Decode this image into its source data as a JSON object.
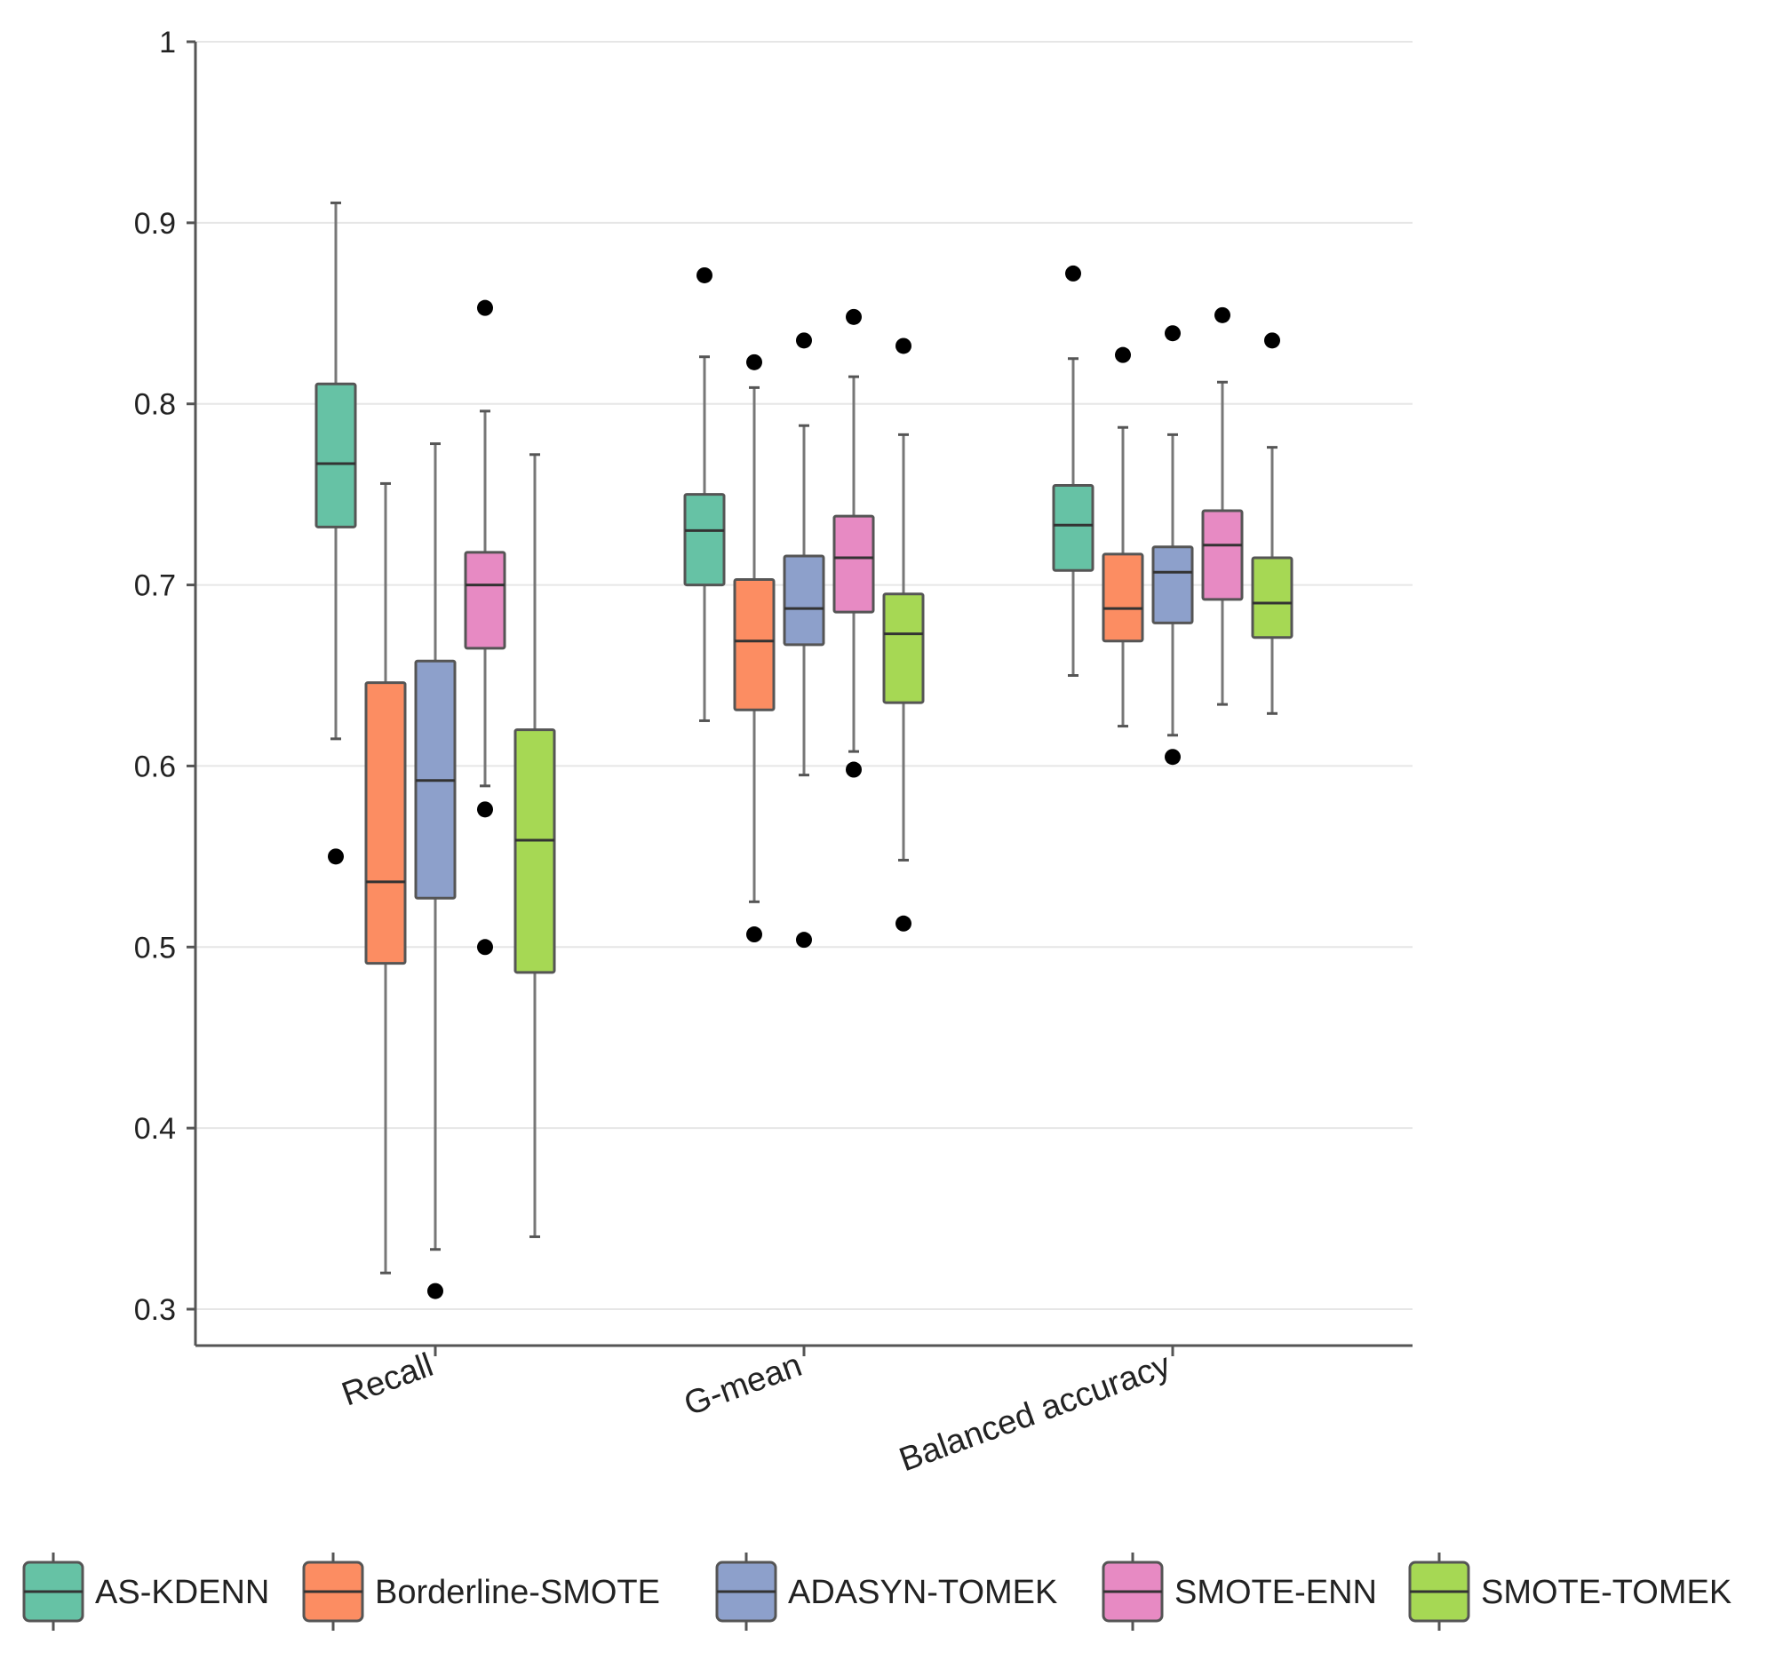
{
  "chart_data": {
    "type": "boxplot",
    "categories": [
      "Recall",
      "G-mean",
      "Balanced accuracy"
    ],
    "yticks": [
      "0.3",
      "0.4",
      "0.5",
      "0.6",
      "0.7",
      "0.8",
      "0.9",
      "1"
    ],
    "ylim": [
      0.28,
      1.0
    ],
    "grid": true,
    "legend_position": "bottom",
    "series": [
      {
        "name": "AS-KDENN",
        "color": "#66c2a5",
        "boxes": [
          {
            "min": 0.615,
            "q1": 0.732,
            "median": 0.767,
            "q3": 0.811,
            "max": 0.911,
            "outliers": [
              0.55
            ]
          },
          {
            "min": 0.625,
            "q1": 0.7,
            "median": 0.73,
            "q3": 0.75,
            "max": 0.826,
            "outliers": [
              0.871
            ]
          },
          {
            "min": 0.65,
            "q1": 0.708,
            "median": 0.733,
            "q3": 0.755,
            "max": 0.825,
            "outliers": [
              0.872
            ]
          }
        ]
      },
      {
        "name": "Borderline-SMOTE",
        "color": "#fc8d62",
        "boxes": [
          {
            "min": 0.32,
            "q1": 0.491,
            "median": 0.536,
            "q3": 0.646,
            "max": 0.756,
            "outliers": []
          },
          {
            "min": 0.525,
            "q1": 0.631,
            "median": 0.669,
            "q3": 0.703,
            "max": 0.809,
            "outliers": [
              0.823,
              0.507
            ]
          },
          {
            "min": 0.622,
            "q1": 0.669,
            "median": 0.687,
            "q3": 0.717,
            "max": 0.787,
            "outliers": [
              0.827
            ]
          }
        ]
      },
      {
        "name": "ADASYN-TOMEK",
        "color": "#8da0cb",
        "boxes": [
          {
            "min": 0.333,
            "q1": 0.527,
            "median": 0.592,
            "q3": 0.658,
            "max": 0.778,
            "outliers": [
              0.31
            ]
          },
          {
            "min": 0.595,
            "q1": 0.667,
            "median": 0.687,
            "q3": 0.716,
            "max": 0.788,
            "outliers": [
              0.835,
              0.504
            ]
          },
          {
            "min": 0.617,
            "q1": 0.679,
            "median": 0.707,
            "q3": 0.721,
            "max": 0.783,
            "outliers": [
              0.839,
              0.605
            ]
          }
        ]
      },
      {
        "name": "SMOTE-ENN",
        "color": "#e78ac3",
        "boxes": [
          {
            "min": 0.589,
            "q1": 0.665,
            "median": 0.7,
            "q3": 0.718,
            "max": 0.796,
            "outliers": [
              0.853,
              0.576,
              0.5
            ]
          },
          {
            "min": 0.608,
            "q1": 0.685,
            "median": 0.715,
            "q3": 0.738,
            "max": 0.815,
            "outliers": [
              0.848,
              0.598
            ]
          },
          {
            "min": 0.634,
            "q1": 0.692,
            "median": 0.722,
            "q3": 0.741,
            "max": 0.812,
            "outliers": [
              0.849
            ]
          }
        ]
      },
      {
        "name": "SMOTE-TOMEK",
        "color": "#a6d854",
        "boxes": [
          {
            "min": 0.34,
            "q1": 0.486,
            "median": 0.559,
            "q3": 0.62,
            "max": 0.772,
            "outliers": []
          },
          {
            "min": 0.548,
            "q1": 0.635,
            "median": 0.673,
            "q3": 0.695,
            "max": 0.783,
            "outliers": [
              0.832,
              0.513
            ]
          },
          {
            "min": 0.629,
            "q1": 0.671,
            "median": 0.69,
            "q3": 0.715,
            "max": 0.776,
            "outliers": [
              0.835
            ]
          }
        ]
      }
    ]
  }
}
